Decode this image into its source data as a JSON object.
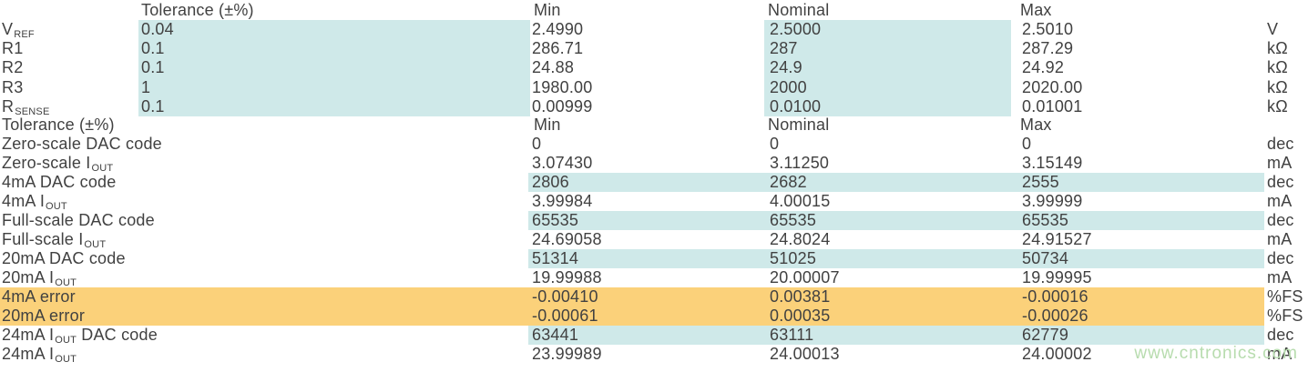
{
  "colors": {
    "highlight_blue": "#cfe9e9",
    "highlight_orange": "#fbd17a",
    "text": "#414141",
    "watermark": "#b7dcae"
  },
  "section1": {
    "header": {
      "tolerance": "Tolerance (±%)",
      "min": "Min",
      "nominal": "Nominal",
      "max": "Max"
    },
    "rows": [
      {
        "label_pre": "V",
        "label_sub": "REF",
        "label_post": "",
        "tolerance": "0.04",
        "min": "2.4990",
        "nominal": "2.5000",
        "max": "2.5010",
        "unit": "V"
      },
      {
        "label_pre": "R1",
        "label_sub": "",
        "label_post": "",
        "tolerance": "0.1",
        "min": "286.71",
        "nominal": "287",
        "max": "287.29",
        "unit": "kΩ"
      },
      {
        "label_pre": "R2",
        "label_sub": "",
        "label_post": "",
        "tolerance": "0.1",
        "min": "24.88",
        "nominal": "24.9",
        "max": "24.92",
        "unit": "kΩ"
      },
      {
        "label_pre": "R3",
        "label_sub": "",
        "label_post": "",
        "tolerance": "1",
        "min": "1980.00",
        "nominal": "2000",
        "max": "2020.00",
        "unit": "kΩ"
      },
      {
        "label_pre": "R",
        "label_sub": "SENSE",
        "label_post": "",
        "tolerance": "0.1",
        "min": "0.00999",
        "nominal": "0.0100",
        "max": "0.01001",
        "unit": "kΩ"
      }
    ]
  },
  "section2": {
    "header": {
      "label": "Tolerance (±%)",
      "min": "Min",
      "nominal": "Nominal",
      "max": "Max"
    },
    "rows": [
      {
        "label_pre": "Zero-scale DAC code",
        "label_sub": "",
        "label_post": "",
        "min": "0",
        "nominal": "0",
        "max": "0",
        "unit": "dec",
        "highlight": "none"
      },
      {
        "label_pre": "Zero-scale I",
        "label_sub": "OUT",
        "label_post": "",
        "min": "3.07430",
        "nominal": "3.11250",
        "max": "3.15149",
        "unit": "mA",
        "highlight": "none"
      },
      {
        "label_pre": "4mA DAC code",
        "label_sub": "",
        "label_post": "",
        "min": "2806",
        "nominal": "2682",
        "max": "2555",
        "unit": "dec",
        "highlight": "blue"
      },
      {
        "label_pre": "4mA I",
        "label_sub": "OUT",
        "label_post": "",
        "min": "3.99984",
        "nominal": "4.00015",
        "max": "3.99999",
        "unit": "mA",
        "highlight": "none"
      },
      {
        "label_pre": "Full-scale DAC code",
        "label_sub": "",
        "label_post": "",
        "min": "65535",
        "nominal": "65535",
        "max": "65535",
        "unit": "dec",
        "highlight": "blue"
      },
      {
        "label_pre": "Full-scale I",
        "label_sub": "OUT",
        "label_post": "",
        "min": "24.69058",
        "nominal": "24.8024",
        "max": "24.91527",
        "unit": "mA",
        "highlight": "none"
      },
      {
        "label_pre": "20mA DAC code",
        "label_sub": "",
        "label_post": "",
        "min": "51314",
        "nominal": "51025",
        "max": "50734",
        "unit": "dec",
        "highlight": "blue"
      },
      {
        "label_pre": "20mA I",
        "label_sub": "OUT",
        "label_post": "",
        "min": "19.99988",
        "nominal": "20.00007",
        "max": "19.99995",
        "unit": "mA",
        "highlight": "none"
      },
      {
        "label_pre": "4mA error",
        "label_sub": "",
        "label_post": "",
        "min": "-0.00410",
        "nominal": "0.00381",
        "max": "-0.00016",
        "unit": "%FS",
        "highlight": "orange"
      },
      {
        "label_pre": "20mA error",
        "label_sub": "",
        "label_post": "",
        "min": "-0.00061",
        "nominal": "0.00035",
        "max": "-0.00026",
        "unit": "%FS",
        "highlight": "orange"
      },
      {
        "label_pre": "24mA I",
        "label_sub": "OUT",
        "label_post": " DAC code",
        "min": "63441",
        "nominal": "63111",
        "max": "62779",
        "unit": "dec",
        "highlight": "blue"
      },
      {
        "label_pre": "24mA I",
        "label_sub": "OUT",
        "label_post": "",
        "min": "23.99989",
        "nominal": "24.00013",
        "max": "24.00002",
        "unit": "mA",
        "highlight": "none"
      }
    ]
  },
  "watermark": {
    "text": "www.cntronics.com"
  }
}
